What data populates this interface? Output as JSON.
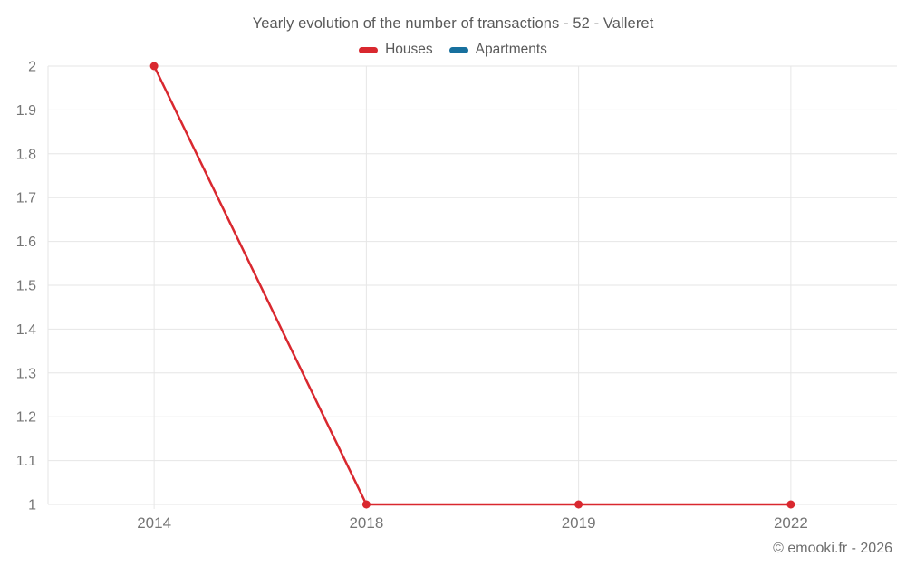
{
  "title": "Yearly evolution of the number of transactions - 52 - Valleret",
  "legend": {
    "items": [
      {
        "label": "Houses",
        "color": "#d9282f"
      },
      {
        "label": "Apartments",
        "color": "#17709e"
      }
    ]
  },
  "watermark": "© emooki.fr - 2026",
  "colors": {
    "houses": "#d9282f",
    "apartments": "#17709e",
    "gridline": "#e6e6e6",
    "tick_label": "#757575",
    "title_text": "#595959"
  },
  "chart_data": {
    "type": "line",
    "title": "Yearly evolution of the number of transactions - 52 - Valleret",
    "categories": [
      "2014",
      "2018",
      "2019",
      "2022"
    ],
    "series": [
      {
        "name": "Houses",
        "color": "#d9282f",
        "values": [
          2,
          1,
          1,
          1
        ]
      },
      {
        "name": "Apartments",
        "color": "#17709e",
        "values": []
      }
    ],
    "xlabel": "",
    "ylabel": "",
    "ylim": [
      1,
      2
    ],
    "ytick_labels": [
      "2",
      "1.9",
      "1.8",
      "1.7",
      "1.6",
      "1.5",
      "1.4",
      "1.3",
      "1.2",
      "1.1",
      "1"
    ],
    "grid": true,
    "legend_position": "top"
  }
}
